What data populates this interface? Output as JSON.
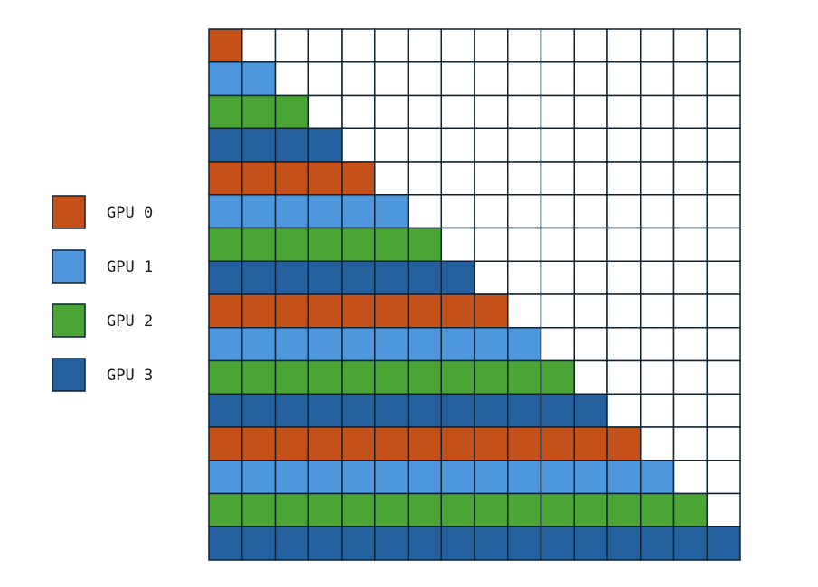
{
  "legend": [
    {
      "label": "GPU 0",
      "color": "#c4511a"
    },
    {
      "label": "GPU 1",
      "color": "#4f97dd"
    },
    {
      "label": "GPU 2",
      "color": "#4aa534"
    },
    {
      "label": "GPU 3",
      "color": "#245f9e"
    }
  ],
  "grid": {
    "rows": 16,
    "cols": 16,
    "filled_per_row": [
      1,
      2,
      3,
      4,
      5,
      6,
      7,
      8,
      9,
      10,
      11,
      12,
      13,
      14,
      15,
      16
    ],
    "row_gpu": [
      0,
      1,
      2,
      3,
      0,
      1,
      2,
      3,
      0,
      1,
      2,
      3,
      0,
      1,
      2,
      3
    ]
  },
  "colors": {
    "empty": "#ffffff",
    "gridline": "#0d2233"
  }
}
